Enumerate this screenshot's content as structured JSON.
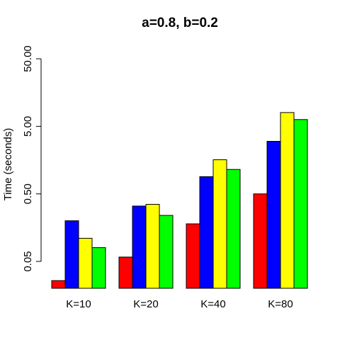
{
  "chart_data": {
    "type": "bar",
    "title": "a=0.8, b=0.2",
    "xlabel": "",
    "ylabel": "Time (seconds)",
    "y_scale": "log",
    "ylim": [
      0.02,
      50
    ],
    "y_ticks": [
      0.05,
      0.5,
      5,
      50
    ],
    "y_tick_labels": [
      "0.05",
      "0.50",
      "5.00",
      "50.00"
    ],
    "categories": [
      "K=10",
      "K=20",
      "K=40",
      "K=80"
    ],
    "grid": false,
    "series": [
      {
        "color": "#ff0000",
        "values": [
          0.026,
          0.058,
          0.18,
          0.5
        ]
      },
      {
        "color": "#0000ff",
        "values": [
          0.2,
          0.33,
          0.9,
          3.0
        ]
      },
      {
        "color": "#ffff00",
        "values": [
          0.11,
          0.35,
          1.6,
          8.0
        ]
      },
      {
        "color": "#00ff00",
        "values": [
          0.08,
          0.24,
          1.15,
          6.3
        ]
      }
    ]
  }
}
